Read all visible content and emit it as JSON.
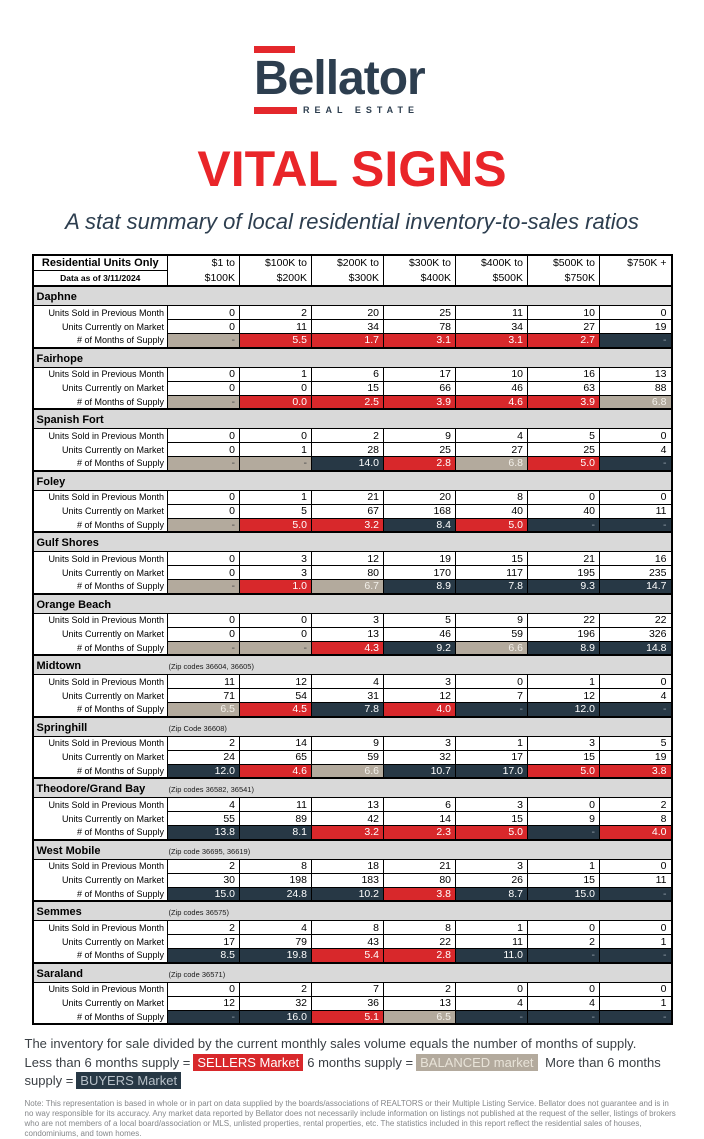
{
  "colors": {
    "red": "#d8282b",
    "navy": "#273845",
    "tan": "#b3aa9d",
    "section_bg": "#d9d9d9",
    "brand_navy": "#2d3e4f",
    "brand_red": "#e4282c",
    "title_red": "#e92529",
    "note_gray": "#85878a",
    "text_dark": "#3a3f44"
  },
  "header": {
    "brand": "Bellator",
    "brand_sub": "REAL ESTATE",
    "title": "VITAL SIGNS",
    "subtitle": "A stat summary of local residential inventory-to-sales ratios"
  },
  "table": {
    "corner_title": "Residential Units Only",
    "corner_subtitle": "Data as of 3/11/2024",
    "price_columns": [
      [
        "$1 to",
        "$100K"
      ],
      [
        "$100K to",
        "$200K"
      ],
      [
        "$200K to",
        "$300K"
      ],
      [
        "$300K to",
        "$400K"
      ],
      [
        "$400K to",
        "$500K"
      ],
      [
        "$500K to",
        "$750K"
      ],
      [
        "$750K +",
        ""
      ]
    ],
    "row_labels": [
      "Units Sold in Previous Month",
      "Units Currently on Market",
      "# of Months of Supply"
    ],
    "sections": [
      {
        "name": "Daphne",
        "zip": "",
        "sold": [
          "0",
          "2",
          "20",
          "25",
          "11",
          "10",
          "0"
        ],
        "on_market": [
          "0",
          "11",
          "34",
          "78",
          "34",
          "27",
          "19"
        ],
        "supply": [
          "-",
          "5.5",
          "1.7",
          "3.1",
          "3.1",
          "2.7",
          "-"
        ],
        "supply_market": [
          "balanced",
          "sellers",
          "sellers",
          "sellers",
          "sellers",
          "sellers",
          "buyers"
        ]
      },
      {
        "name": "Fairhope",
        "zip": "",
        "sold": [
          "0",
          "1",
          "6",
          "17",
          "10",
          "16",
          "13"
        ],
        "on_market": [
          "0",
          "0",
          "15",
          "66",
          "46",
          "63",
          "88"
        ],
        "supply": [
          "-",
          "0.0",
          "2.5",
          "3.9",
          "4.6",
          "3.9",
          "6.8"
        ],
        "supply_market": [
          "balanced",
          "sellers",
          "sellers",
          "sellers",
          "sellers",
          "sellers",
          "balanced"
        ]
      },
      {
        "name": "Spanish Fort",
        "zip": "",
        "sold": [
          "0",
          "0",
          "2",
          "9",
          "4",
          "5",
          "0"
        ],
        "on_market": [
          "0",
          "1",
          "28",
          "25",
          "27",
          "25",
          "4"
        ],
        "supply": [
          "-",
          "-",
          "14.0",
          "2.8",
          "6.8",
          "5.0",
          "-"
        ],
        "supply_market": [
          "balanced",
          "balanced",
          "buyers",
          "sellers",
          "balanced",
          "sellers",
          "buyers"
        ]
      },
      {
        "name": "Foley",
        "zip": "",
        "sold": [
          "0",
          "1",
          "21",
          "20",
          "8",
          "0",
          "0"
        ],
        "on_market": [
          "0",
          "5",
          "67",
          "168",
          "40",
          "40",
          "11"
        ],
        "supply": [
          "-",
          "5.0",
          "3.2",
          "8.4",
          "5.0",
          "-",
          "-"
        ],
        "supply_market": [
          "balanced",
          "sellers",
          "sellers",
          "buyers",
          "sellers",
          "buyers",
          "buyers"
        ]
      },
      {
        "name": "Gulf Shores",
        "zip": "",
        "sold": [
          "0",
          "3",
          "12",
          "19",
          "15",
          "21",
          "16"
        ],
        "on_market": [
          "0",
          "3",
          "80",
          "170",
          "117",
          "195",
          "235"
        ],
        "supply": [
          "-",
          "1.0",
          "6.7",
          "8.9",
          "7.8",
          "9.3",
          "14.7"
        ],
        "supply_market": [
          "balanced",
          "sellers",
          "balanced",
          "buyers",
          "buyers",
          "buyers",
          "buyers"
        ]
      },
      {
        "name": "Orange Beach",
        "zip": "",
        "sold": [
          "0",
          "0",
          "3",
          "5",
          "9",
          "22",
          "22"
        ],
        "on_market": [
          "0",
          "0",
          "13",
          "46",
          "59",
          "196",
          "326"
        ],
        "supply": [
          "-",
          "-",
          "4.3",
          "9.2",
          "6.6",
          "8.9",
          "14.8"
        ],
        "supply_market": [
          "balanced",
          "balanced",
          "sellers",
          "buyers",
          "balanced",
          "buyers",
          "buyers"
        ]
      },
      {
        "name": "Midtown",
        "zip": "(Zip codes 36604, 36605)",
        "sold": [
          "11",
          "12",
          "4",
          "3",
          "0",
          "1",
          "0"
        ],
        "on_market": [
          "71",
          "54",
          "31",
          "12",
          "7",
          "12",
          "4"
        ],
        "supply": [
          "6.5",
          "4.5",
          "7.8",
          "4.0",
          "-",
          "12.0",
          "-"
        ],
        "supply_market": [
          "balanced",
          "sellers",
          "buyers",
          "sellers",
          "buyers",
          "buyers",
          "buyers"
        ]
      },
      {
        "name": "Springhill",
        "zip": "(Zip Code 36608)",
        "sold": [
          "2",
          "14",
          "9",
          "3",
          "1",
          "3",
          "5"
        ],
        "on_market": [
          "24",
          "65",
          "59",
          "32",
          "17",
          "15",
          "19"
        ],
        "supply": [
          "12.0",
          "4.6",
          "6.6",
          "10.7",
          "17.0",
          "5.0",
          "3.8"
        ],
        "supply_market": [
          "buyers",
          "sellers",
          "balanced",
          "buyers",
          "buyers",
          "sellers",
          "sellers"
        ]
      },
      {
        "name": "Theodore/Grand Bay",
        "zip": "(Zip codes 36582, 36541)",
        "sold": [
          "4",
          "11",
          "13",
          "6",
          "3",
          "0",
          "2"
        ],
        "on_market": [
          "55",
          "89",
          "42",
          "14",
          "15",
          "9",
          "8"
        ],
        "supply": [
          "13.8",
          "8.1",
          "3.2",
          "2.3",
          "5.0",
          "-",
          "4.0"
        ],
        "supply_market": [
          "buyers",
          "buyers",
          "sellers",
          "sellers",
          "sellers",
          "buyers",
          "sellers"
        ]
      },
      {
        "name": "West Mobile",
        "zip": "(Zip code 36695, 36619)",
        "sold": [
          "2",
          "8",
          "18",
          "21",
          "3",
          "1",
          "0"
        ],
        "on_market": [
          "30",
          "198",
          "183",
          "80",
          "26",
          "15",
          "11"
        ],
        "supply": [
          "15.0",
          "24.8",
          "10.2",
          "3.8",
          "8.7",
          "15.0",
          "-"
        ],
        "supply_market": [
          "buyers",
          "buyers",
          "buyers",
          "sellers",
          "buyers",
          "buyers",
          "buyers"
        ]
      },
      {
        "name": "Semmes",
        "zip": "(Zip codes 36575)",
        "sold": [
          "2",
          "4",
          "8",
          "8",
          "1",
          "0",
          "0"
        ],
        "on_market": [
          "17",
          "79",
          "43",
          "22",
          "11",
          "2",
          "1"
        ],
        "supply": [
          "8.5",
          "19.8",
          "5.4",
          "2.8",
          "11.0",
          "-",
          "-"
        ],
        "supply_market": [
          "buyers",
          "buyers",
          "sellers",
          "sellers",
          "buyers",
          "buyers",
          "buyers"
        ]
      },
      {
        "name": "Saraland",
        "zip": "(Zip code 36571)",
        "sold": [
          "0",
          "2",
          "7",
          "2",
          "0",
          "0",
          "0"
        ],
        "on_market": [
          "12",
          "32",
          "36",
          "13",
          "4",
          "4",
          "1"
        ],
        "supply": [
          "-",
          "16.0",
          "5.1",
          "6.5",
          "-",
          "-",
          "-"
        ],
        "supply_market": [
          "buyers",
          "buyers",
          "sellers",
          "balanced",
          "buyers",
          "buyers",
          "buyers"
        ]
      }
    ]
  },
  "footer": {
    "line1": "The inventory for sale divided by the current monthly sales volume equals the number of months of supply.",
    "legend": {
      "seg1": "Less than 6 months supply =",
      "chip1": "SELLERS Market",
      "seg2": "6 months supply =",
      "chip2": "BALANCED market",
      "seg3": "More than 6 months supply =",
      "chip3": "BUYERS Market"
    },
    "note": "Note: This representation is based in whole or in part on data supplied by the boards/associations of REALTORS or their Multiple Listing Service. Bellator does not guarantee and is in no way responsible for its accuracy. Any market data reported by Bellator does not necessarily include information on listings not published at the request of the seller, listings of brokers who are not members of a local board/association or MLS, unlisted properties, rental properties, etc. The statistics included in this report reflect the residential sales of houses, condominiums, and town homes."
  }
}
